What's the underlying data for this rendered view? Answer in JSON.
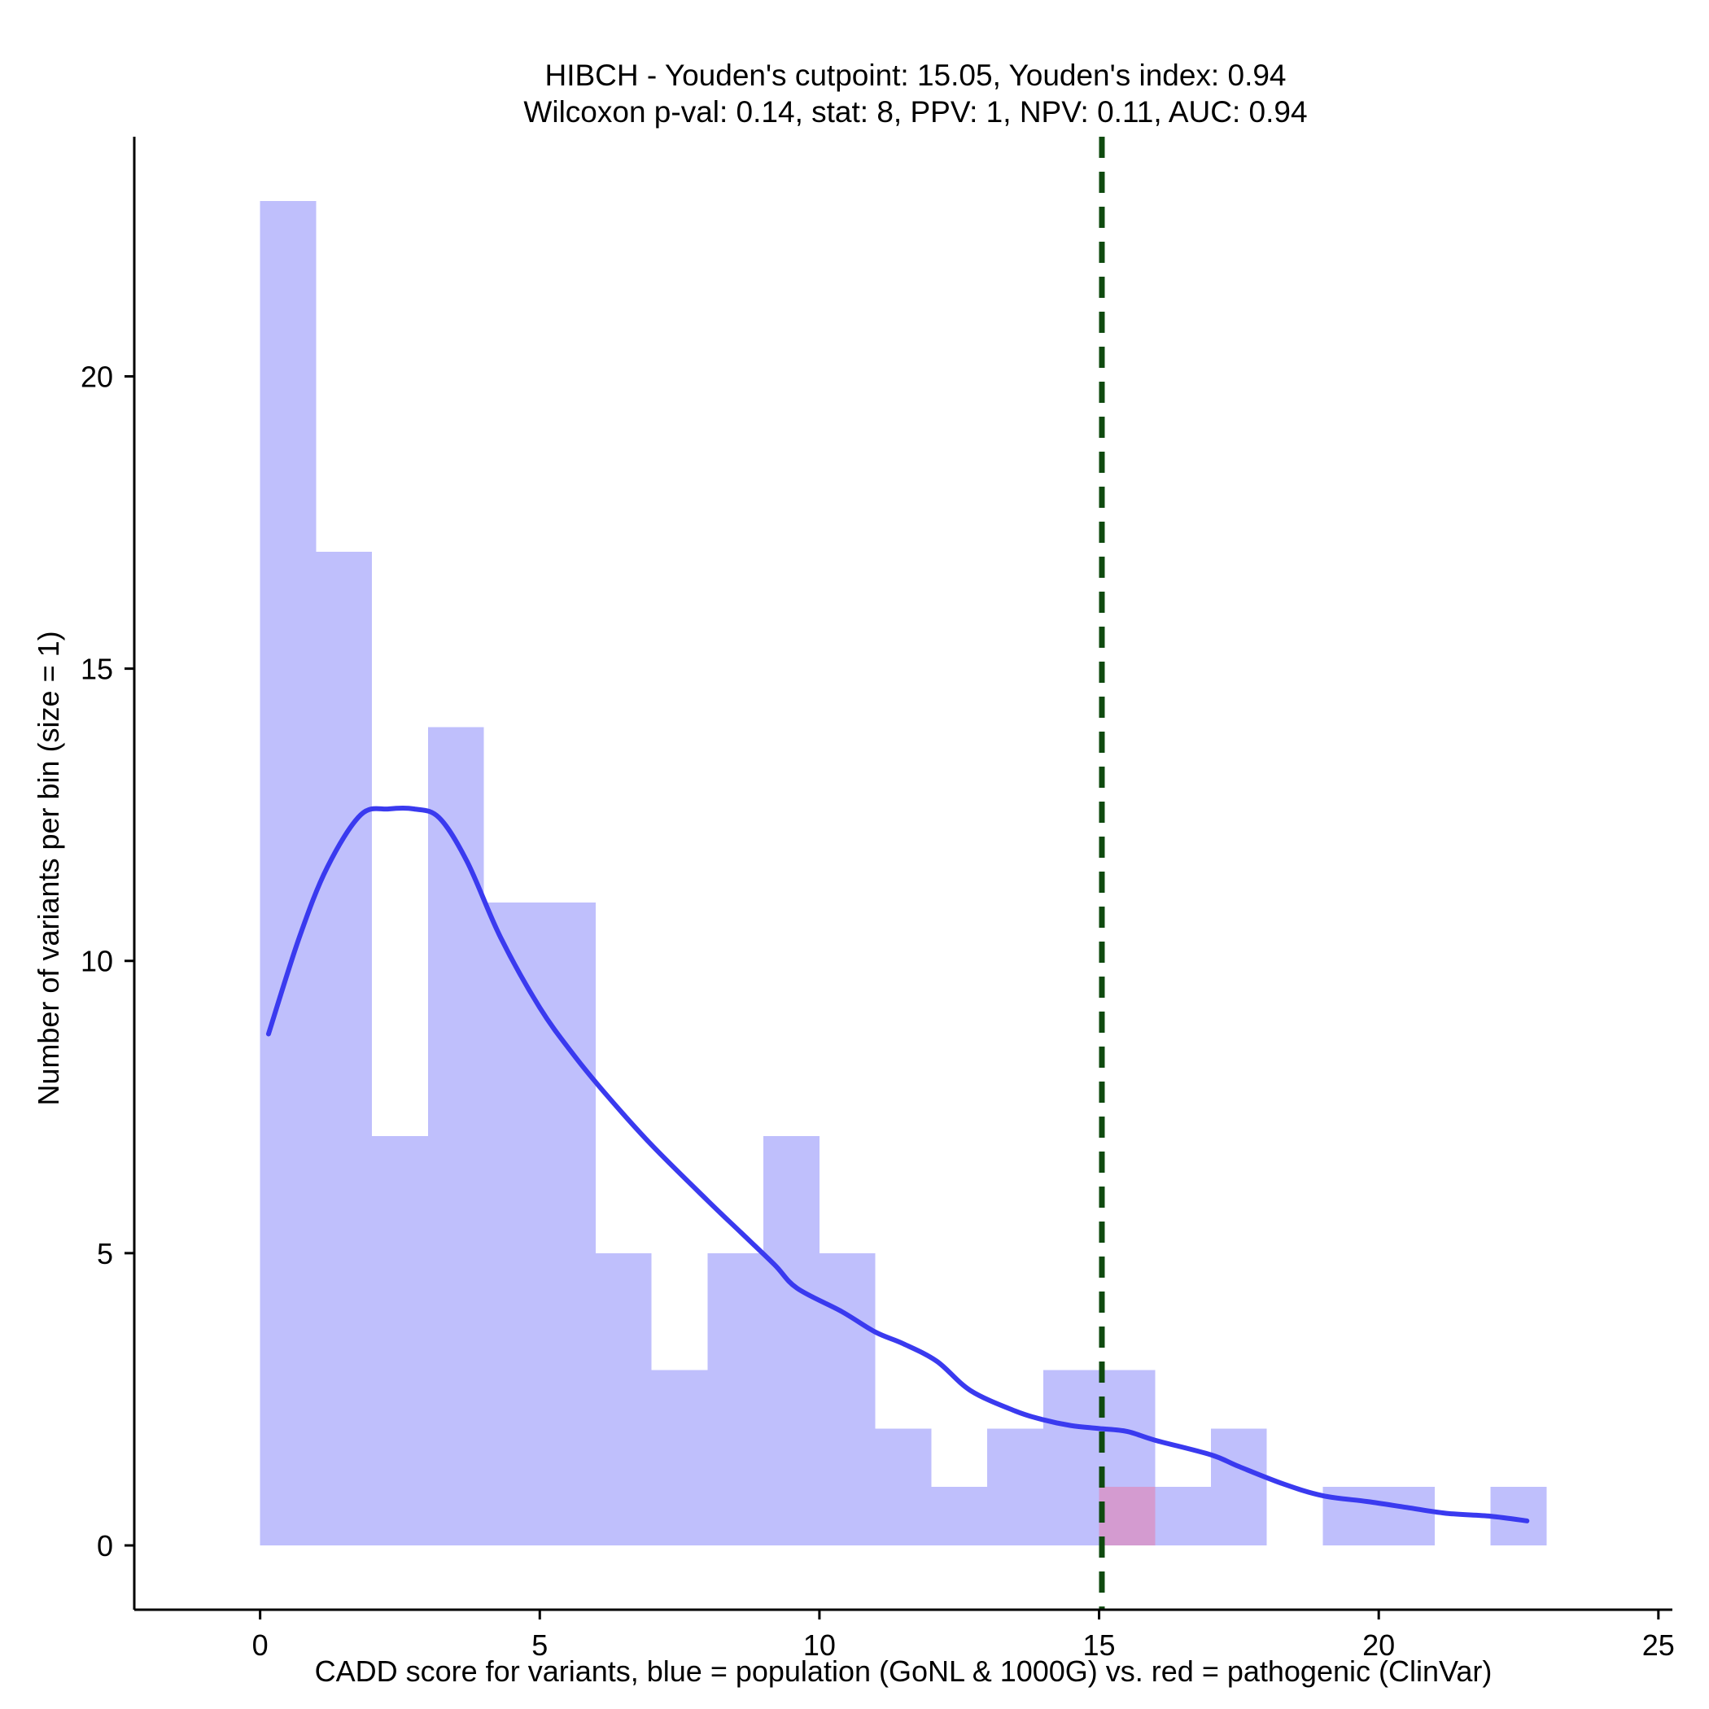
{
  "chart_data": {
    "type": "histogram",
    "title_line1": "HIBCH - Youden's cutpoint: 15.05, Youden's index: 0.94",
    "title_line2": "Wilcoxon p-val: 0.14, stat: 8, PPV: 1, NPV: 0.11, AUC: 0.94",
    "xlabel": "CADD score for variants, blue = population (GoNL & 1000G) vs. red = pathogenic (ClinVar)",
    "ylabel": "Number of variants per bin (size = 1)",
    "xlim": [
      -2.25,
      25.25
    ],
    "ylim": [
      -1.1,
      24.1
    ],
    "xticks": [
      0,
      5,
      10,
      15,
      20,
      25
    ],
    "yticks": [
      0,
      5,
      10,
      15,
      20
    ],
    "bin_size": 1,
    "series": [
      {
        "color": "#bfbffc",
        "bins": [
          {
            "x0": 0,
            "count": 23
          },
          {
            "x0": 1,
            "count": 17
          },
          {
            "x0": 2,
            "count": 7
          },
          {
            "x0": 3,
            "count": 14
          },
          {
            "x0": 4,
            "count": 11
          },
          {
            "x0": 5,
            "count": 11
          },
          {
            "x0": 6,
            "count": 5
          },
          {
            "x0": 7,
            "count": 3
          },
          {
            "x0": 8,
            "count": 5
          },
          {
            "x0": 9,
            "count": 7
          },
          {
            "x0": 10,
            "count": 5
          },
          {
            "x0": 11,
            "count": 2
          },
          {
            "x0": 12,
            "count": 1
          },
          {
            "x0": 13,
            "count": 2
          },
          {
            "x0": 14,
            "count": 3
          },
          {
            "x0": 15,
            "count": 3
          },
          {
            "x0": 16,
            "count": 1
          },
          {
            "x0": 17,
            "count": 2
          },
          {
            "x0": 19,
            "count": 1
          },
          {
            "x0": 20,
            "count": 1
          },
          {
            "x0": 22,
            "count": 1
          }
        ]
      },
      {
        "color": "#d49bd0",
        "bins": [
          {
            "x0": 15,
            "count": 1
          }
        ]
      }
    ],
    "density": {
      "color": "#3a3aef",
      "points": [
        [
          0.15,
          8.75
        ],
        [
          0.7,
          10.4
        ],
        [
          1.2,
          11.6
        ],
        [
          1.8,
          12.5
        ],
        [
          2.3,
          12.6
        ],
        [
          2.75,
          12.6
        ],
        [
          3.2,
          12.45
        ],
        [
          3.7,
          11.7
        ],
        [
          4.3,
          10.4
        ],
        [
          5.0,
          9.2
        ],
        [
          5.6,
          8.4
        ],
        [
          6.2,
          7.7
        ],
        [
          7.0,
          6.85
        ],
        [
          8.0,
          5.9
        ],
        [
          8.6,
          5.35
        ],
        [
          9.2,
          4.8
        ],
        [
          9.6,
          4.4
        ],
        [
          10.4,
          4.0
        ],
        [
          11.0,
          3.65
        ],
        [
          11.5,
          3.45
        ],
        [
          12.1,
          3.15
        ],
        [
          12.7,
          2.65
        ],
        [
          13.5,
          2.3
        ],
        [
          14.0,
          2.15
        ],
        [
          14.5,
          2.05
        ],
        [
          15.0,
          2.0
        ],
        [
          15.5,
          1.95
        ],
        [
          16.0,
          1.8
        ],
        [
          17.0,
          1.55
        ],
        [
          17.5,
          1.35
        ],
        [
          18.3,
          1.05
        ],
        [
          19.0,
          0.85
        ],
        [
          19.8,
          0.75
        ],
        [
          20.5,
          0.65
        ],
        [
          21.2,
          0.55
        ],
        [
          22.0,
          0.5
        ],
        [
          22.65,
          0.42
        ]
      ]
    },
    "cutpoint": {
      "x": 15.05,
      "color": "#0f4a0f",
      "style": "dashed"
    }
  }
}
